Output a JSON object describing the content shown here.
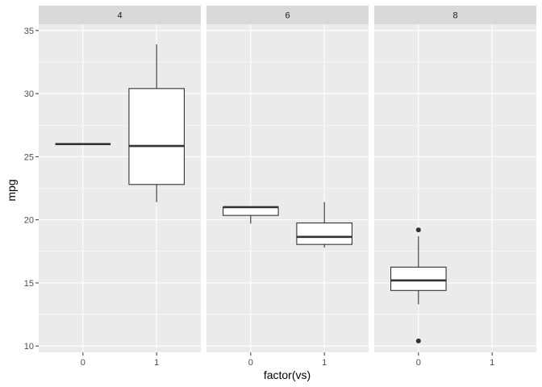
{
  "chart_data": {
    "type": "boxplot",
    "xlabel": "factor(vs)",
    "ylabel": "mpg",
    "ylim": [
      9.5,
      35.5
    ],
    "yticks": [
      10,
      15,
      20,
      25,
      30,
      35
    ],
    "categories": [
      "0",
      "1"
    ],
    "grid": true,
    "colors": {
      "panel": "#EBEBEB",
      "strip": "#D9D9D9",
      "grid": "#FFFFFF",
      "box_fill": "#FFFFFF",
      "box_line": "#333333"
    },
    "facets": [
      {
        "label": "4",
        "boxes": [
          {
            "x": "0",
            "lower_whisker": 26.0,
            "q1": 26.0,
            "median": 26.0,
            "q3": 26.0,
            "upper_whisker": 26.0,
            "outliers": []
          },
          {
            "x": "1",
            "lower_whisker": 21.4,
            "q1": 22.8,
            "median": 25.85,
            "q3": 30.4,
            "upper_whisker": 33.9,
            "outliers": []
          }
        ]
      },
      {
        "label": "6",
        "boxes": [
          {
            "x": "0",
            "lower_whisker": 19.7,
            "q1": 20.35,
            "median": 21.0,
            "q3": 21.0,
            "upper_whisker": 21.0,
            "outliers": []
          },
          {
            "x": "1",
            "lower_whisker": 17.8,
            "q1": 18.05,
            "median": 18.65,
            "q3": 19.75,
            "upper_whisker": 21.4,
            "outliers": []
          }
        ]
      },
      {
        "label": "8",
        "boxes": [
          {
            "x": "0",
            "lower_whisker": 13.3,
            "q1": 14.4,
            "median": 15.2,
            "q3": 16.25,
            "upper_whisker": 18.7,
            "outliers": [
              19.2,
              10.4
            ]
          }
        ]
      }
    ]
  }
}
